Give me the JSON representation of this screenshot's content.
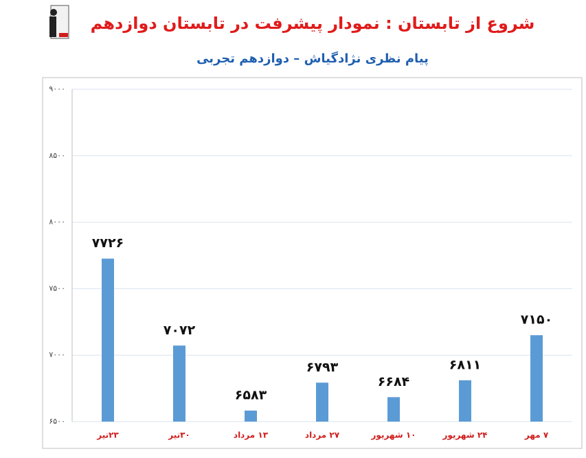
{
  "chart_data": {
    "type": "bar",
    "title": "شروع از تابستان : نمودار پیشرفت در تابستان دوازدهم",
    "subtitle": "پیام نظری نژادگیاش – دوازدهم تجربی",
    "categories": [
      "۲۳تیر",
      "۳۰تیر",
      "۱۳ مرداد",
      "۲۷ مرداد",
      "۱۰ شهریور",
      "۲۴ شهریور",
      "۷ مهر"
    ],
    "values": [
      7726,
      7072,
      6583,
      6793,
      6684,
      6811,
      7150
    ],
    "value_labels": [
      "۷۷۲۶",
      "۷۰۷۲",
      "۶۵۸۳",
      "۶۷۹۳",
      "۶۶۸۴",
      "۶۸۱۱",
      "۷۱۵۰"
    ],
    "color": "#5b9bd5",
    "ylim": [
      6500,
      9000
    ],
    "yticks": [
      {
        "value": 6500,
        "label": "۶۵۰۰"
      },
      {
        "value": 7000,
        "label": "۷۰۰۰"
      },
      {
        "value": 7500,
        "label": "۷۵۰۰"
      },
      {
        "value": 8000,
        "label": "۸۰۰۰"
      },
      {
        "value": 8500,
        "label": "۸۵۰۰"
      },
      {
        "value": 9000,
        "label": "۹۰۰۰"
      }
    ],
    "grid": true
  }
}
